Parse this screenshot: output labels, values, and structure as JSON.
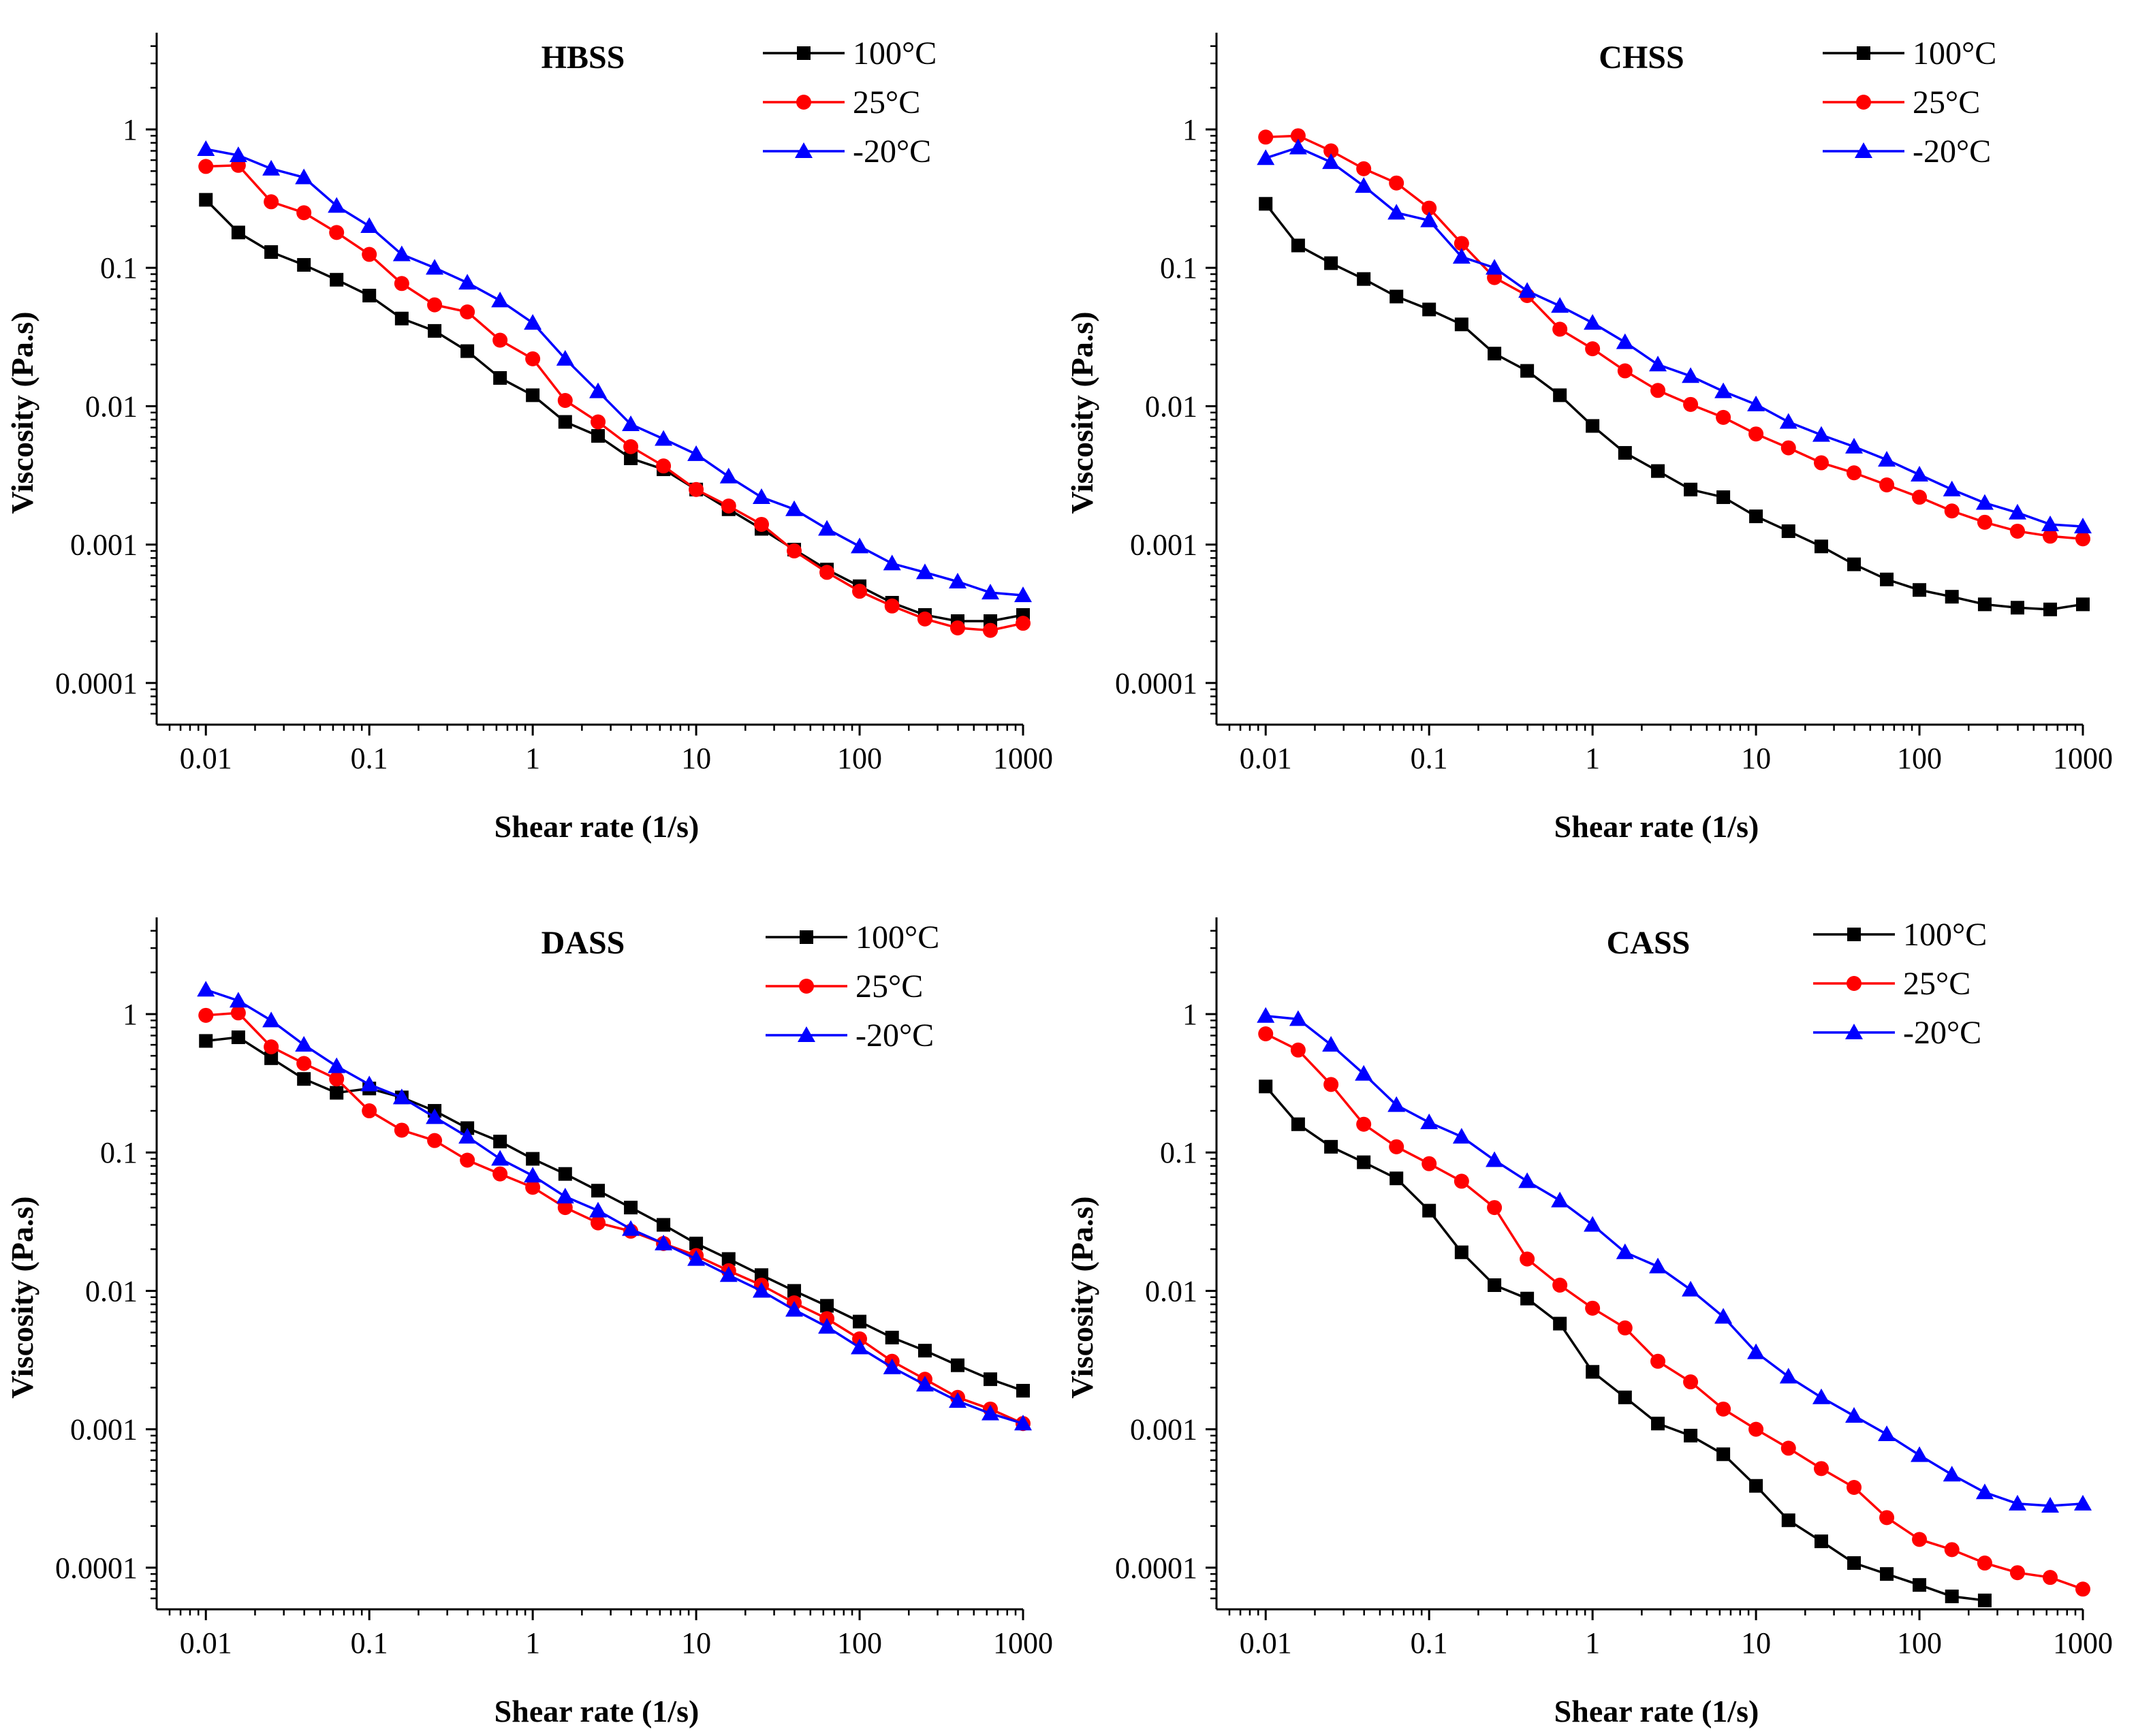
{
  "chart_data": [
    {
      "type": "line",
      "title": "HBSS",
      "xlabel": "Shear rate (1/s)",
      "ylabel": "Viscosity (Pa.s)",
      "xscale": "log",
      "yscale": "log",
      "xlim": [
        0.005,
        1000
      ],
      "ylim": [
        5e-05,
        5
      ],
      "xticks": [
        0.01,
        0.1,
        1,
        10,
        100,
        1000
      ],
      "xtick_labels": [
        "0.01",
        "0.1",
        "1",
        "10",
        "100",
        "1000"
      ],
      "yticks": [
        0.0001,
        0.001,
        0.01,
        0.1,
        1
      ],
      "ytick_labels": [
        "0.0001",
        "0.001",
        "0.01",
        "0.1",
        "1"
      ],
      "legend_position": "top-right",
      "x": [
        0.01,
        0.0158,
        0.0251,
        0.0398,
        0.0631,
        0.1,
        0.158,
        0.251,
        0.398,
        0.631,
        1,
        1.58,
        2.51,
        3.98,
        6.31,
        10,
        15.8,
        25.1,
        39.8,
        63.1,
        100,
        158,
        251,
        398,
        631,
        1000
      ],
      "series": [
        {
          "name": "100°C",
          "color": "#000000",
          "marker": "square",
          "values": [
            0.31,
            0.18,
            0.13,
            0.105,
            0.082,
            0.063,
            0.043,
            0.035,
            0.025,
            0.016,
            0.012,
            0.0077,
            0.0061,
            0.0042,
            0.0035,
            0.0025,
            0.0018,
            0.0013,
            0.00092,
            0.00066,
            0.0005,
            0.00038,
            0.00031,
            0.00028,
            0.00028,
            0.00031
          ]
        },
        {
          "name": "25°C",
          "color": "#ff0000",
          "marker": "circle",
          "values": [
            0.54,
            0.55,
            0.3,
            0.25,
            0.18,
            0.125,
            0.077,
            0.054,
            0.048,
            0.03,
            0.022,
            0.011,
            0.0077,
            0.0051,
            0.0037,
            0.0025,
            0.0019,
            0.0014,
            0.0009,
            0.00063,
            0.00046,
            0.00036,
            0.00029,
            0.00025,
            0.00024,
            0.00027
          ]
        },
        {
          "name": "-20°C",
          "color": "#0000ff",
          "marker": "triangle",
          "values": [
            0.72,
            0.65,
            0.52,
            0.45,
            0.28,
            0.2,
            0.125,
            0.1,
            0.078,
            0.058,
            0.04,
            0.022,
            0.0128,
            0.0074,
            0.0058,
            0.0045,
            0.0031,
            0.0022,
            0.0018,
            0.0013,
            0.00097,
            0.00073,
            0.00063,
            0.00054,
            0.00045,
            0.00043
          ]
        }
      ]
    },
    {
      "type": "line",
      "title": "CHSS",
      "xlabel": "Shear rate (1/s)",
      "ylabel": "Viscosity (Pa.s)",
      "xscale": "log",
      "yscale": "log",
      "xlim": [
        0.005,
        1000
      ],
      "ylim": [
        5e-05,
        5
      ],
      "xticks": [
        0.01,
        0.1,
        1,
        10,
        100,
        1000
      ],
      "xtick_labels": [
        "0.01",
        "0.1",
        "1",
        "10",
        "100",
        "1000"
      ],
      "yticks": [
        0.0001,
        0.001,
        0.01,
        0.1,
        1
      ],
      "ytick_labels": [
        "0.0001",
        "0.001",
        "0.01",
        "0.1",
        "1"
      ],
      "legend_position": "top-right",
      "x": [
        0.01,
        0.0158,
        0.0251,
        0.0398,
        0.0631,
        0.1,
        0.158,
        0.251,
        0.398,
        0.631,
        1,
        1.58,
        2.51,
        3.98,
        6.31,
        10,
        15.8,
        25.1,
        39.8,
        63.1,
        100,
        158,
        251,
        398,
        631,
        1000
      ],
      "series": [
        {
          "name": "100°C",
          "color": "#000000",
          "marker": "square",
          "values": [
            0.29,
            0.145,
            0.108,
            0.083,
            0.062,
            0.05,
            0.039,
            0.024,
            0.018,
            0.012,
            0.0072,
            0.0046,
            0.0034,
            0.0025,
            0.0022,
            0.0016,
            0.00125,
            0.00097,
            0.00072,
            0.00056,
            0.00047,
            0.00042,
            0.00037,
            0.00035,
            0.00034,
            0.00037
          ]
        },
        {
          "name": "25°C",
          "color": "#ff0000",
          "marker": "circle",
          "values": [
            0.88,
            0.9,
            0.7,
            0.52,
            0.41,
            0.27,
            0.15,
            0.085,
            0.063,
            0.036,
            0.026,
            0.018,
            0.013,
            0.0103,
            0.0083,
            0.0063,
            0.005,
            0.0039,
            0.0033,
            0.0027,
            0.0022,
            0.00175,
            0.00145,
            0.00125,
            0.00115,
            0.0011
          ]
        },
        {
          "name": "-20°C",
          "color": "#0000ff",
          "marker": "triangle",
          "values": [
            0.62,
            0.74,
            0.58,
            0.39,
            0.25,
            0.22,
            0.12,
            0.1,
            0.068,
            0.053,
            0.04,
            0.029,
            0.02,
            0.0165,
            0.0128,
            0.0103,
            0.0077,
            0.0062,
            0.0051,
            0.0041,
            0.0032,
            0.0025,
            0.002,
            0.0017,
            0.0014,
            0.00135
          ]
        }
      ]
    },
    {
      "type": "line",
      "title": "DASS",
      "xlabel": "Shear rate (1/s)",
      "ylabel": "Viscosity (Pa.s)",
      "xscale": "log",
      "yscale": "log",
      "xlim": [
        0.005,
        1000
      ],
      "ylim": [
        5e-05,
        5
      ],
      "xticks": [
        0.01,
        0.1,
        1,
        10,
        100,
        1000
      ],
      "xtick_labels": [
        "0.01",
        "0.1",
        "1",
        "10",
        "100",
        "1000"
      ],
      "yticks": [
        0.0001,
        0.001,
        0.01,
        0.1,
        1
      ],
      "ytick_labels": [
        "0.0001",
        "0.001",
        "0.01",
        "0.1",
        "1"
      ],
      "legend_position": "top-right",
      "x": [
        0.01,
        0.0158,
        0.0251,
        0.0398,
        0.0631,
        0.1,
        0.158,
        0.251,
        0.398,
        0.631,
        1,
        1.58,
        2.51,
        3.98,
        6.31,
        10,
        15.8,
        25.1,
        39.8,
        63.1,
        100,
        158,
        251,
        398,
        631,
        1000
      ],
      "series": [
        {
          "name": "100°C",
          "color": "#000000",
          "marker": "square",
          "values": [
            0.64,
            0.68,
            0.48,
            0.34,
            0.27,
            0.29,
            0.25,
            0.2,
            0.15,
            0.12,
            0.09,
            0.07,
            0.053,
            0.04,
            0.03,
            0.022,
            0.017,
            0.013,
            0.01,
            0.0078,
            0.006,
            0.0046,
            0.0037,
            0.0029,
            0.0023,
            0.0019
          ]
        },
        {
          "name": "25°C",
          "color": "#ff0000",
          "marker": "circle",
          "values": [
            0.98,
            1.02,
            0.58,
            0.44,
            0.34,
            0.2,
            0.145,
            0.122,
            0.088,
            0.07,
            0.056,
            0.04,
            0.031,
            0.027,
            0.022,
            0.018,
            0.014,
            0.011,
            0.0082,
            0.0063,
            0.0045,
            0.0031,
            0.0023,
            0.0017,
            0.0014,
            0.0011
          ]
        },
        {
          "name": "-20°C",
          "color": "#0000ff",
          "marker": "triangle",
          "values": [
            1.5,
            1.25,
            0.9,
            0.6,
            0.42,
            0.31,
            0.25,
            0.18,
            0.13,
            0.09,
            0.068,
            0.048,
            0.038,
            0.028,
            0.022,
            0.017,
            0.013,
            0.01,
            0.0073,
            0.0055,
            0.0039,
            0.0028,
            0.0021,
            0.0016,
            0.0013,
            0.0011
          ]
        }
      ]
    },
    {
      "type": "line",
      "title": "CASS",
      "xlabel": "Shear rate (1/s)",
      "ylabel": "Viscosity (Pa.s)",
      "xscale": "log",
      "yscale": "log",
      "xlim": [
        0.005,
        1000
      ],
      "ylim": [
        5e-05,
        5
      ],
      "xticks": [
        0.01,
        0.1,
        1,
        10,
        100,
        1000
      ],
      "xtick_labels": [
        "0.01",
        "0.1",
        "1",
        "10",
        "100",
        "1000"
      ],
      "yticks": [
        0.0001,
        0.001,
        0.01,
        0.1,
        1
      ],
      "ytick_labels": [
        "0.0001",
        "0.001",
        "0.01",
        "0.1",
        "1"
      ],
      "legend_position": "top-right",
      "x": [
        0.01,
        0.0158,
        0.0251,
        0.0398,
        0.0631,
        0.1,
        0.158,
        0.251,
        0.398,
        0.631,
        1,
        1.58,
        2.51,
        3.98,
        6.31,
        10,
        15.8,
        25.1,
        39.8,
        63.1,
        100,
        158,
        251,
        398,
        631,
        1000
      ],
      "series": [
        {
          "name": "100°C",
          "color": "#000000",
          "marker": "square",
          "values": [
            0.3,
            0.16,
            0.11,
            0.085,
            0.065,
            0.038,
            0.019,
            0.011,
            0.0088,
            0.0058,
            0.0026,
            0.0017,
            0.0011,
            0.0009,
            0.00066,
            0.00039,
            0.00022,
            0.000155,
            0.000108,
            9e-05,
            7.5e-05,
            6.2e-05,
            5.8e-05,
            null,
            null,
            null
          ]
        },
        {
          "name": "25°C",
          "color": "#ff0000",
          "marker": "circle",
          "values": [
            0.72,
            0.55,
            0.31,
            0.16,
            0.11,
            0.083,
            0.062,
            0.04,
            0.017,
            0.011,
            0.0075,
            0.0054,
            0.0031,
            0.0022,
            0.0014,
            0.001,
            0.00073,
            0.00052,
            0.00038,
            0.00023,
            0.00016,
            0.000135,
            0.000108,
            9.2e-05,
            8.5e-05,
            7e-05
          ]
        },
        {
          "name": "-20°C",
          "color": "#0000ff",
          "marker": "triangle",
          "values": [
            0.97,
            0.92,
            0.6,
            0.37,
            0.22,
            0.165,
            0.13,
            0.088,
            0.062,
            0.045,
            0.03,
            0.019,
            0.015,
            0.0102,
            0.0065,
            0.0036,
            0.0024,
            0.0017,
            0.00125,
            0.00092,
            0.00065,
            0.00047,
            0.00035,
            0.00029,
            0.00028,
            0.00029
          ]
        }
      ]
    }
  ]
}
